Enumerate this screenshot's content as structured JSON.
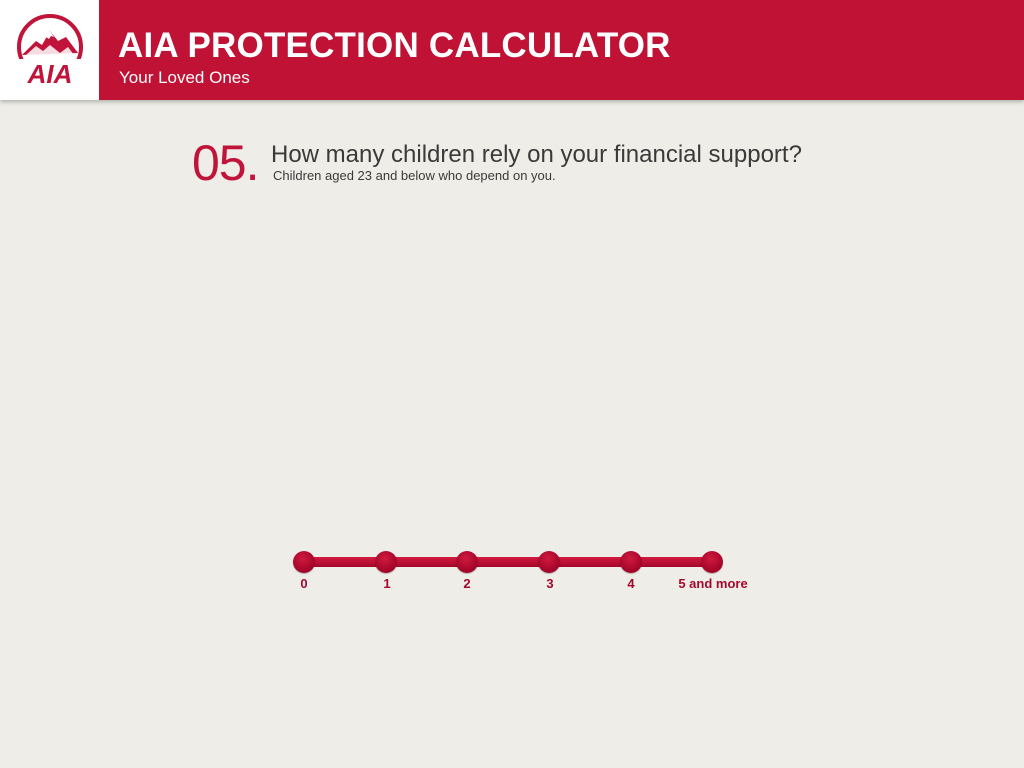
{
  "header": {
    "logo_text": "AIA",
    "title": "AIA PROTECTION CALCULATOR",
    "subtitle": "Your Loved Ones",
    "brand_color": "#bf1234"
  },
  "question": {
    "number": "05.",
    "text": "How many children rely on your financial support?",
    "subtext": "Children aged 23 and below who depend on you."
  },
  "slider": {
    "options": [
      "0",
      "1",
      "2",
      "3",
      "4",
      "5 and more"
    ],
    "selected": null,
    "accent_color": "#a5082c"
  }
}
